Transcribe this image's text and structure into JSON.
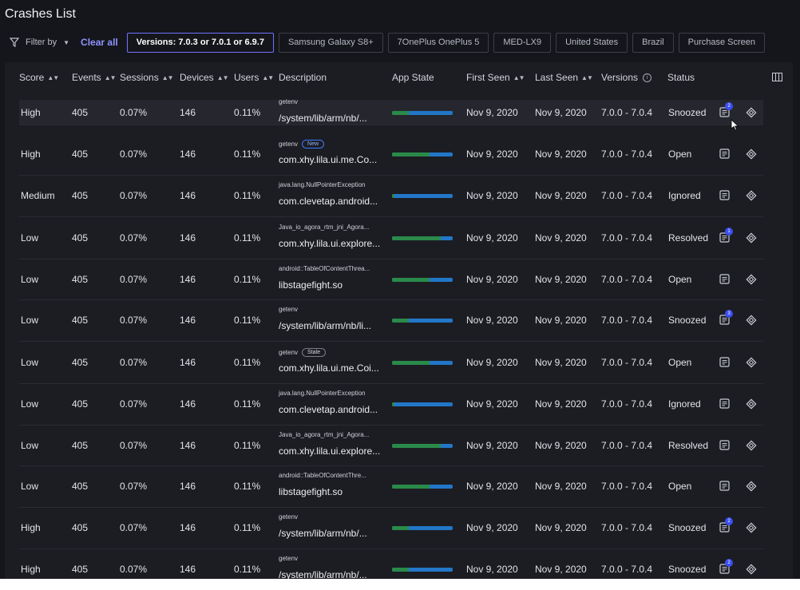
{
  "page": {
    "title": "Crashes List"
  },
  "filters": {
    "filter_by_label": "Filter by",
    "clear_all_label": "Clear all",
    "chips": [
      "Versions: 7.0.3 or 7.0.1 or 6.9.7",
      "Samsung Galaxy S8+",
      "7OnePlus OnePlus 5",
      "MED-LX9",
      "United States",
      "Brazil",
      "Purchase Screen"
    ]
  },
  "table": {
    "columns": {
      "score": "Score",
      "events": "Events",
      "sessions": "Sessions",
      "devices": "Devices",
      "users": "Users",
      "description": "Description",
      "app_state": "App State",
      "first_seen": "First Seen",
      "last_seen": "Last Seen",
      "versions": "Versions",
      "status": "Status"
    },
    "rows": [
      {
        "score": "High",
        "events": "405",
        "sessions": "0.07%",
        "devices": "146",
        "users": "0.11%",
        "desc_title": "getenv",
        "desc_badge": "",
        "desc_text": "/system/lib/arm/nb/...",
        "app_state_green": 0.28,
        "first_seen": "Nov 9, 2020",
        "last_seen": "Nov 9, 2020",
        "versions": "7.0.0 - 7.0.4",
        "status": "Snoozed",
        "note_count": "2"
      },
      {
        "score": "High",
        "events": "405",
        "sessions": "0.07%",
        "devices": "146",
        "users": "0.11%",
        "desc_title": "getenv",
        "desc_badge": "New",
        "desc_text": "com.xhy.lila.ui.me.Co...",
        "app_state_green": 0.62,
        "first_seen": "Nov 9, 2020",
        "last_seen": "Nov 9, 2020",
        "versions": "7.0.0 - 7.0.4",
        "status": "Open",
        "note_count": ""
      },
      {
        "score": "Medium",
        "events": "405",
        "sessions": "0.07%",
        "devices": "146",
        "users": "0.11%",
        "desc_title": "java.lang.NullPointerException",
        "desc_badge": "",
        "desc_text": "com.clevetap.android...",
        "app_state_green": 0.04,
        "first_seen": "Nov 9, 2020",
        "last_seen": "Nov 9, 2020",
        "versions": "7.0.0 - 7.0.4",
        "status": "Ignored",
        "note_count": ""
      },
      {
        "score": "Low",
        "events": "405",
        "sessions": "0.07%",
        "devices": "146",
        "users": "0.11%",
        "desc_title": "Java_io_agora_rtm_jni_Agora...",
        "desc_badge": "",
        "desc_text": "com.xhy.lila.ui.explore...",
        "app_state_green": 0.8,
        "first_seen": "Nov 9, 2020",
        "last_seen": "Nov 9, 2020",
        "versions": "7.0.0 - 7.0.4",
        "status": "Resolved",
        "note_count": "1"
      },
      {
        "score": "Low",
        "events": "405",
        "sessions": "0.07%",
        "devices": "146",
        "users": "0.11%",
        "desc_title": "android::TableOfContentThrea...",
        "desc_badge": "",
        "desc_text": "libstagefight.so",
        "app_state_green": 0.62,
        "first_seen": "Nov 9, 2020",
        "last_seen": "Nov 9, 2020",
        "versions": "7.0.0 - 7.0.4",
        "status": "Open",
        "note_count": ""
      },
      {
        "score": "Low",
        "events": "405",
        "sessions": "0.07%",
        "devices": "146",
        "users": "0.11%",
        "desc_title": "getenv",
        "desc_badge": "",
        "desc_text": "/system/lib/arm/nb/li...",
        "app_state_green": 0.28,
        "first_seen": "Nov 9, 2020",
        "last_seen": "Nov 9, 2020",
        "versions": "7.0.0 - 7.0.4",
        "status": "Snoozed",
        "note_count": "3"
      },
      {
        "score": "Low",
        "events": "405",
        "sessions": "0.07%",
        "devices": "146",
        "users": "0.11%",
        "desc_title": "getenv",
        "desc_badge": "Stale",
        "desc_text": "com.xhy.lila.ui.me.Coi...",
        "app_state_green": 0.62,
        "first_seen": "Nov 9, 2020",
        "last_seen": "Nov 9, 2020",
        "versions": "7.0.0 - 7.0.4",
        "status": "Open",
        "note_count": ""
      },
      {
        "score": "Low",
        "events": "405",
        "sessions": "0.07%",
        "devices": "146",
        "users": "0.11%",
        "desc_title": "java.lang.NullPointerException",
        "desc_badge": "",
        "desc_text": "com.clevetap.android...",
        "app_state_green": 0.04,
        "first_seen": "Nov 9, 2020",
        "last_seen": "Nov 9, 2020",
        "versions": "7.0.0 - 7.0.4",
        "status": "Ignored",
        "note_count": ""
      },
      {
        "score": "Low",
        "events": "405",
        "sessions": "0.07%",
        "devices": "146",
        "users": "0.11%",
        "desc_title": "Java_io_agora_rtm_jni_Agora...",
        "desc_badge": "",
        "desc_text": "com.xhy.lila.ui.explore...",
        "app_state_green": 0.8,
        "first_seen": "Nov 9, 2020",
        "last_seen": "Nov 9, 2020",
        "versions": "7.0.0 - 7.0.4",
        "status": "Resolved",
        "note_count": ""
      },
      {
        "score": "Low",
        "events": "405",
        "sessions": "0.07%",
        "devices": "146",
        "users": "0.11%",
        "desc_title": "android::TableOfContentThre...",
        "desc_badge": "",
        "desc_text": "libstagefight.so",
        "app_state_green": 0.62,
        "first_seen": "Nov 9, 2020",
        "last_seen": "Nov 9, 2020",
        "versions": "7.0.0 - 7.0.4",
        "status": "Open",
        "note_count": ""
      },
      {
        "score": "High",
        "events": "405",
        "sessions": "0.07%",
        "devices": "146",
        "users": "0.11%",
        "desc_title": "getenv",
        "desc_badge": "",
        "desc_text": "/system/lib/arm/nb/...",
        "app_state_green": 0.28,
        "first_seen": "Nov 9, 2020",
        "last_seen": "Nov 9, 2020",
        "versions": "7.0.0 - 7.0.4",
        "status": "Snoozed",
        "note_count": "2"
      },
      {
        "score": "High",
        "events": "405",
        "sessions": "0.07%",
        "devices": "146",
        "users": "0.11%",
        "desc_title": "getenv",
        "desc_badge": "",
        "desc_text": "/system/lib/arm/nb/...",
        "app_state_green": 0.28,
        "first_seen": "Nov 9, 2020",
        "last_seen": "Nov 9, 2020",
        "versions": "7.0.0 - 7.0.4",
        "status": "Snoozed",
        "note_count": "2"
      }
    ]
  },
  "colors": {
    "background": "#15161b",
    "panel": "#1c1d23",
    "accent": "#8e93ff",
    "bar_blue": "#2277c8",
    "bar_green": "#2a8a4a",
    "note_badge": "#3b4ef0"
  },
  "icons": {
    "filter": "funnel-icon",
    "column_settings": "columns-icon",
    "notes": "notes-icon",
    "jira": "diamond-icon",
    "info": "info-icon",
    "cursor": "mouse-pointer-icon"
  }
}
